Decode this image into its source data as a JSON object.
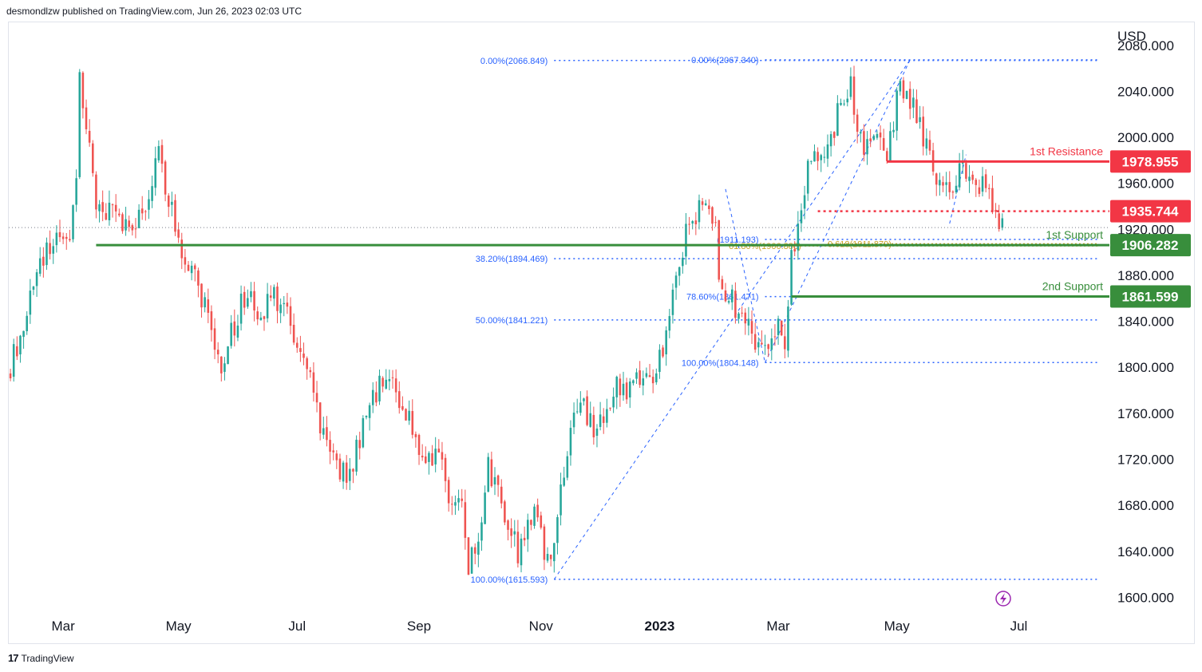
{
  "header": {
    "publish_line": "desmondlzw published on TradingView.com, Jun 26, 2023 02:03 UTC"
  },
  "footer": {
    "logo_mark": "17",
    "logo_text": "TradingView"
  },
  "colors": {
    "up": "#26a69a",
    "down": "#ef5350",
    "resistance": "#f23645",
    "support": "#388e3c",
    "fib": "#2962ff",
    "fib_gold": "#c9a227",
    "text": "#131722",
    "grid": "#e0e3eb"
  },
  "chart_data": {
    "type": "candlestick",
    "currency": "USD",
    "ylim": [
      1585,
      2100
    ],
    "y_ticks": [
      "1600.000",
      "1640.000",
      "1680.000",
      "1720.000",
      "1760.000",
      "1800.000",
      "1840.000",
      "1880.000",
      "1920.000",
      "1960.000",
      "2000.000",
      "2040.000",
      "2080.000"
    ],
    "x_ticks": [
      {
        "label": "Mar",
        "i": 16,
        "bold": false
      },
      {
        "label": "May",
        "i": 51,
        "bold": false
      },
      {
        "label": "Jul",
        "i": 87,
        "bold": false
      },
      {
        "label": "Sep",
        "i": 124,
        "bold": false
      },
      {
        "label": "Nov",
        "i": 161,
        "bold": false
      },
      {
        "label": "2023",
        "i": 197,
        "bold": true
      },
      {
        "label": "Mar",
        "i": 233,
        "bold": false
      },
      {
        "label": "May",
        "i": 269,
        "bold": false
      },
      {
        "label": "Jul",
        "i": 306,
        "bold": false
      }
    ],
    "n_slots": 334,
    "anchors": [
      [
        0,
        1800
      ],
      [
        4,
        1840
      ],
      [
        8,
        1880
      ],
      [
        13,
        1915
      ],
      [
        18,
        1905
      ],
      [
        20,
        1960
      ],
      [
        21,
        2055
      ],
      [
        23,
        2010
      ],
      [
        26,
        1935
      ],
      [
        29,
        1935
      ],
      [
        34,
        1925
      ],
      [
        38,
        1920
      ],
      [
        43,
        1960
      ],
      [
        45,
        1985
      ],
      [
        49,
        1935
      ],
      [
        51,
        1905
      ],
      [
        55,
        1890
      ],
      [
        58,
        1860
      ],
      [
        61,
        1835
      ],
      [
        64,
        1805
      ],
      [
        67,
        1830
      ],
      [
        70,
        1855
      ],
      [
        73,
        1860
      ],
      [
        76,
        1840
      ],
      [
        79,
        1865
      ],
      [
        82,
        1855
      ],
      [
        85,
        1838
      ],
      [
        88,
        1818
      ],
      [
        91,
        1792
      ],
      [
        93,
        1760
      ],
      [
        95,
        1740
      ],
      [
        99,
        1720
      ],
      [
        102,
        1700
      ],
      [
        105,
        1730
      ],
      [
        109,
        1765
      ],
      [
        112,
        1785
      ],
      [
        115,
        1798
      ],
      [
        118,
        1772
      ],
      [
        121,
        1760
      ],
      [
        124,
        1730
      ],
      [
        127,
        1715
      ],
      [
        130,
        1725
      ],
      [
        133,
        1690
      ],
      [
        137,
        1680
      ],
      [
        139,
        1630
      ],
      [
        142,
        1650
      ],
      [
        145,
        1715
      ],
      [
        148,
        1690
      ],
      [
        151,
        1660
      ],
      [
        154,
        1640
      ],
      [
        157,
        1658
      ],
      [
        160,
        1675
      ],
      [
        162,
        1640
      ],
      [
        164,
        1635
      ],
      [
        166,
        1680
      ],
      [
        169,
        1730
      ],
      [
        172,
        1768
      ],
      [
        175,
        1760
      ],
      [
        178,
        1740
      ],
      [
        181,
        1765
      ],
      [
        184,
        1790
      ],
      [
        187,
        1770
      ],
      [
        190,
        1795
      ],
      [
        193,
        1790
      ],
      [
        196,
        1800
      ],
      [
        199,
        1830
      ],
      [
        201,
        1870
      ],
      [
        203,
        1892
      ],
      [
        205,
        1920
      ],
      [
        208,
        1935
      ],
      [
        211,
        1945
      ],
      [
        214,
        1920
      ],
      [
        215,
        1875
      ],
      [
        218,
        1865
      ],
      [
        221,
        1845
      ],
      [
        224,
        1832
      ],
      [
        227,
        1820
      ],
      [
        230,
        1818
      ],
      [
        233,
        1843
      ],
      [
        235,
        1815
      ],
      [
        236,
        1860
      ],
      [
        237,
        1895
      ],
      [
        240,
        1935
      ],
      [
        243,
        1990
      ],
      [
        246,
        1975
      ],
      [
        249,
        2000
      ],
      [
        252,
        2030
      ],
      [
        255,
        2045
      ],
      [
        258,
        1995
      ],
      [
        261,
        1990
      ],
      [
        264,
        2000
      ],
      [
        266,
        1985
      ],
      [
        268,
        2010
      ],
      [
        270,
        2050
      ],
      [
        272,
        2035
      ],
      [
        275,
        2020
      ],
      [
        278,
        1990
      ],
      [
        280,
        1965
      ],
      [
        283,
        1955
      ],
      [
        286,
        1960
      ],
      [
        289,
        1970
      ],
      [
        291,
        1960
      ],
      [
        294,
        1960
      ],
      [
        297,
        1955
      ],
      [
        299,
        1935
      ],
      [
        300,
        1920
      ],
      [
        301,
        1921
      ]
    ],
    "last_candle_index": 301,
    "last_price": "1921.5",
    "horizontal_levels": [
      {
        "name": "1st Resistance",
        "price": 1978.955,
        "label": "1978.955",
        "role": "resistance",
        "style": "solid",
        "x_start_i": 266
      },
      {
        "name": "",
        "price": 1935.744,
        "label": "1935.744",
        "role": "resistance",
        "style": "dotted",
        "x_start_i": 245
      },
      {
        "name": "1st Support",
        "price": 1906.282,
        "label": "1906.282",
        "role": "support",
        "style": "solid",
        "x_start_i": 26
      },
      {
        "name": "2nd Support",
        "price": 1861.599,
        "label": "1861.599",
        "role": "support",
        "style": "solid",
        "x_start_i": 237
      }
    ],
    "fib_retracements": [
      {
        "from_i": 165,
        "to_i": 330,
        "levels": [
          {
            "label": "0.00%(2066.849)",
            "price": 2066.849
          },
          {
            "label": "38.20%(1894.469)",
            "price": 1894.469
          },
          {
            "label": "50.00%(1841.221)",
            "price": 1841.221
          },
          {
            "label": "100.00%(1615.593)",
            "price": 1615.593
          }
        ]
      },
      {
        "from_i": 229,
        "to_i": 330,
        "levels": [
          {
            "label": "0.00%(2067.340)",
            "price": 2067.34
          },
          {
            "label": "(1911.193)",
            "price": 1911.193
          },
          {
            "label": "78.60%(1861.471)",
            "price": 1861.471
          },
          {
            "label": "100.00%(1804.148)",
            "price": 1804.148
          }
        ]
      }
    ],
    "fib_overlap_labels": [
      {
        "label": "61.80%(1906.888)",
        "price": 1905.5
      },
      {
        "label": "0.618(1911.879)",
        "price": 1907.5
      }
    ],
    "trend_lines": [
      {
        "from": [
          165,
          1615.593
        ],
        "to": [
          273,
          2067.34
        ]
      },
      {
        "from": [
          229,
          1804.148
        ],
        "to": [
          273,
          2067.34
        ]
      },
      {
        "from": [
          217,
          1955
        ],
        "to": [
          229,
          1804.148
        ]
      },
      {
        "from": [
          285,
          1925
        ],
        "to": [
          290,
          1985
        ]
      }
    ]
  }
}
